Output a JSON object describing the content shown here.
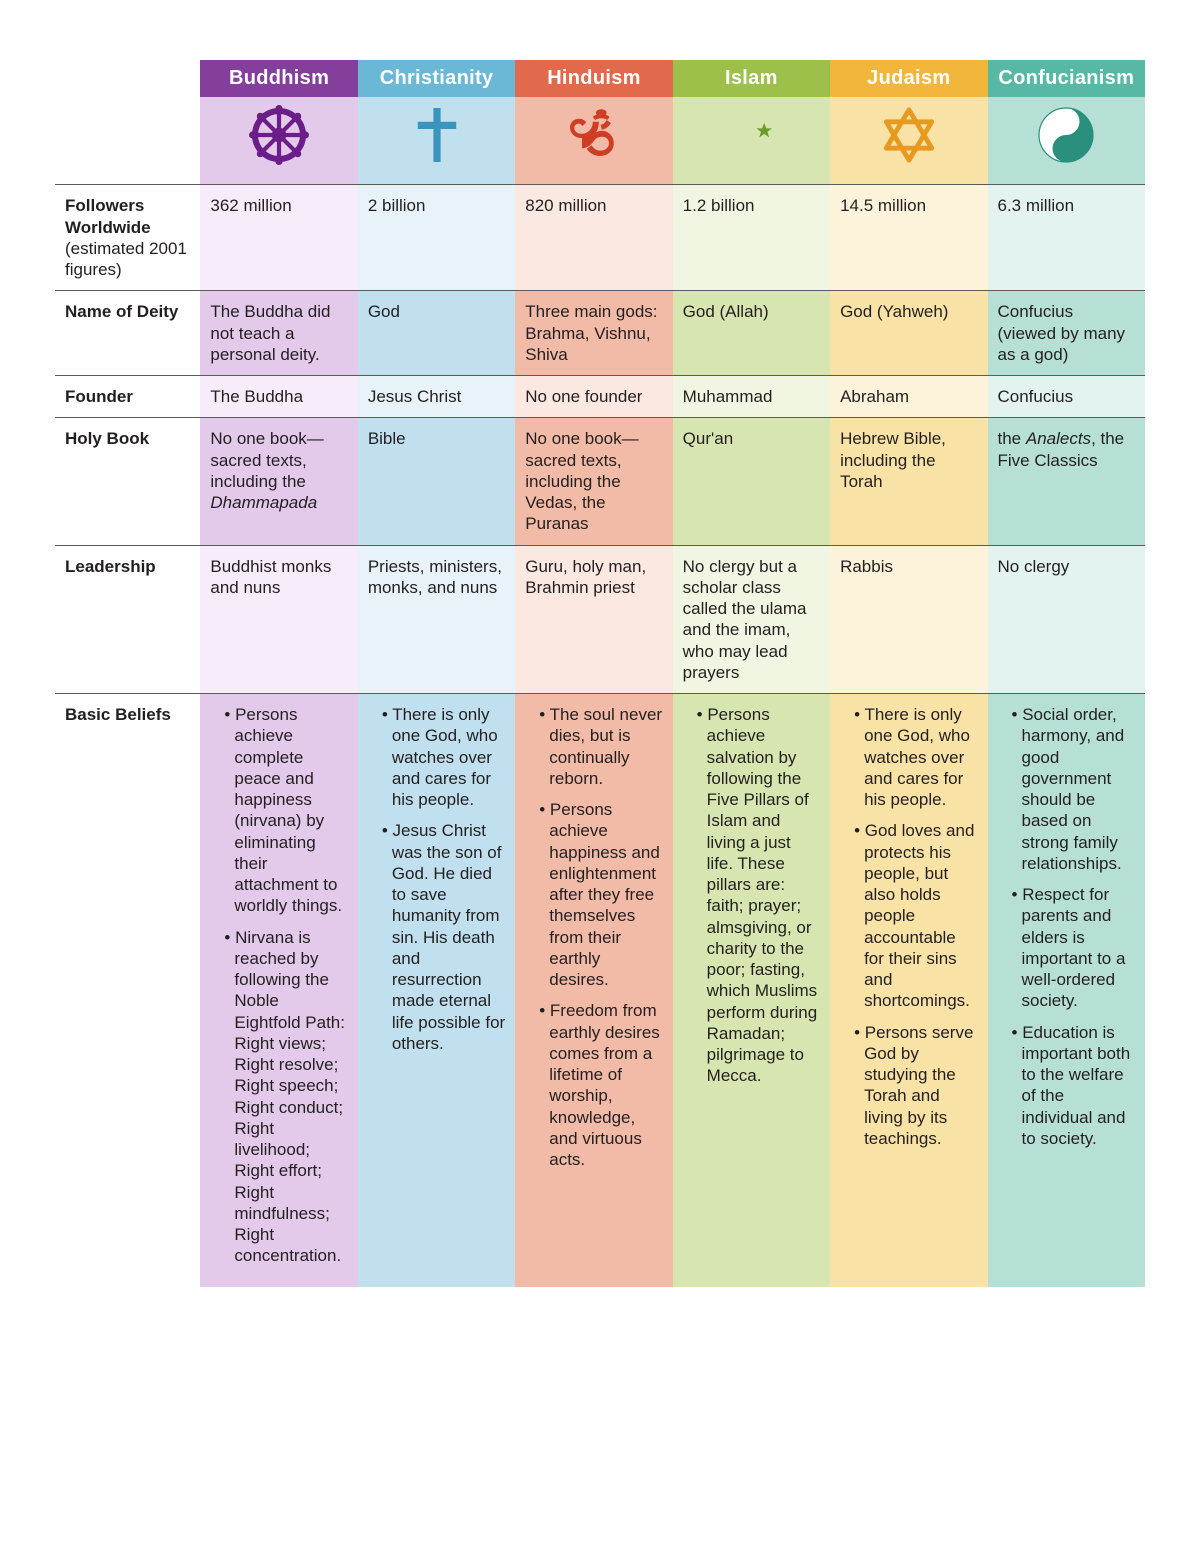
{
  "colors": {
    "labelcol_bg": "#ffffff",
    "row_border": "#5b5b5b",
    "text": "#231f20"
  },
  "columns": [
    {
      "key": "buddhism",
      "name": "Buddhism",
      "header_bg": "#843f9c",
      "icon_bg": "#e3c9ea",
      "body_bg_light": "#f7ecf9",
      "body_bg_dark": "#e3c9ea",
      "icon_color": "#6b1d88",
      "icon": "dharma-wheel-icon"
    },
    {
      "key": "christianity",
      "name": "Christianity",
      "header_bg": "#6bb7d6",
      "icon_bg": "#c0e0ef",
      "body_bg_light": "#e7f3f9",
      "body_bg_dark": "#c0e0ef",
      "icon_color": "#3b94bb",
      "icon": "cross-icon"
    },
    {
      "key": "hinduism",
      "name": "Hinduism",
      "header_bg": "#e26a4c",
      "icon_bg": "#f2bba7",
      "body_bg_light": "#fbe8e0",
      "body_bg_dark": "#f2bba7",
      "icon_color": "#ce3d24",
      "icon": "om-icon"
    },
    {
      "key": "islam",
      "name": "Islam",
      "header_bg": "#9cc04a",
      "icon_bg": "#d7e6b0",
      "body_bg_light": "#f1f6e2",
      "body_bg_dark": "#d7e6b0",
      "icon_color": "#6b9a2d",
      "icon": "star-crescent-icon"
    },
    {
      "key": "judaism",
      "name": "Judaism",
      "header_bg": "#f2b63c",
      "icon_bg": "#f9e2a6",
      "body_bg_light": "#fdf3db",
      "body_bg_dark": "#f9e2a6",
      "icon_color": "#e79a1f",
      "icon": "star-of-david-icon"
    },
    {
      "key": "confucianism",
      "name": "Confucianism",
      "header_bg": "#57b8a5",
      "icon_bg": "#b6e0d6",
      "body_bg_light": "#e3f3ef",
      "body_bg_dark": "#b6e0d6",
      "icon_color": "#2b8f7e",
      "icon": "yin-yang-icon"
    }
  ],
  "rows": [
    {
      "key": "followers",
      "label_main": "Followers Worldwide",
      "label_sub": "(estimated 2001 figures)",
      "shade": "light",
      "cells": {
        "buddhism": "362 million",
        "christianity": "2 billion",
        "hinduism": "820 million",
        "islam": "1.2 billion",
        "judaism": "14.5 million",
        "confucianism": "6.3 million"
      }
    },
    {
      "key": "deity",
      "label_main": "Name of Deity",
      "shade": "dark",
      "cells": {
        "buddhism": "The Buddha did not teach a personal deity.",
        "christianity": "God",
        "hinduism": "Three main gods: Brahma, Vishnu, Shiva",
        "islam": "God (Allah)",
        "judaism": "God (Yahweh)",
        "confucianism": "Confucius (viewed by many as a god)"
      }
    },
    {
      "key": "founder",
      "label_main": "Founder",
      "shade": "light",
      "cells": {
        "buddhism": "The Buddha",
        "christianity": "Jesus Christ",
        "hinduism": "No one founder",
        "islam": "Muhammad",
        "judaism": "Abraham",
        "confucianism": "Confucius"
      }
    },
    {
      "key": "holybook",
      "label_main": "Holy Book",
      "shade": "dark",
      "cells_html": {
        "buddhism": "No one book—sacred texts, including the <em>Dhammapada</em>",
        "christianity": "Bible",
        "hinduism": "No one book—sacred texts, including the Vedas, the Puranas",
        "islam": "Qur'an",
        "judaism": "Hebrew Bible, including the Torah",
        "confucianism": "the <em>Analects</em>, the Five Classics"
      }
    },
    {
      "key": "leadership",
      "label_main": "Leadership",
      "shade": "light",
      "cells": {
        "buddhism": "Buddhist monks and nuns",
        "christianity": "Priests, ministers, monks, and nuns",
        "hinduism": "Guru, holy man, Brahmin priest",
        "islam": "No clergy but a scholar class called the ulama and the imam, who may lead prayers",
        "judaism": "Rabbis",
        "confucianism": "No clergy"
      }
    },
    {
      "key": "beliefs",
      "label_main": "Basic Beliefs",
      "shade": "dark",
      "bullets": {
        "buddhism": [
          "Persons achieve complete peace and happiness (nirvana) by eliminating their attachment to worldly things.",
          "Nirvana is reached by following the Noble Eightfold Path: Right views; Right resolve; Right speech; Right conduct; Right livelihood; Right effort; Right mindfulness; Right concentration."
        ],
        "christianity": [
          "There is only one God, who watches over and cares for his people.",
          "Jesus Christ was the son of God. He died to save humanity from sin. His death and resurrection made eternal life possible for others."
        ],
        "hinduism": [
          "The soul never dies, but is continually reborn.",
          "Persons achieve happiness and enlightenment after they free themselves from their earthly desires.",
          "Freedom from earthly desires comes from a lifetime of worship, knowledge, and virtuous acts."
        ],
        "islam": [
          "Persons achieve salvation by following the Five Pillars of Islam and living a just life. These pillars are: faith; prayer; almsgiving, or charity to the poor; fasting, which Muslims perform during Ramadan; pilgrimage to Mecca."
        ],
        "judaism": [
          "There is only one God, who watches over and cares for his people.",
          "God loves and protects his people, but also holds people accountable for their sins and shortcomings.",
          "Persons serve God by studying the Torah and living by its teachings."
        ],
        "confucianism": [
          "Social order, harmony, and good government should be based on strong family relationships.",
          "Respect for parents and elders is important to a well-ordered society.",
          "Education is important both to the welfare of the individual and to society."
        ]
      }
    }
  ]
}
